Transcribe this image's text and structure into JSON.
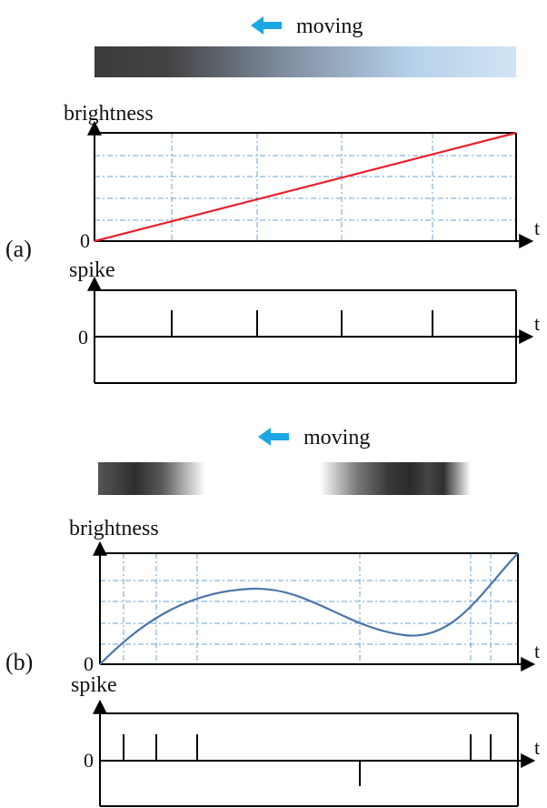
{
  "panel_a": {
    "tag": "(a)",
    "moving_label": "moving",
    "arrow_color": "#1aa7e6",
    "brightness_label": "brightness",
    "spike_label": "spike",
    "origin_label": "0",
    "spike_origin_label": "0",
    "t_label": "t",
    "spike_t_label": "t",
    "curve_color": "#e8202a",
    "gradient": [
      "#3c3c3c",
      "#5a5a5a",
      "#8fa3bb",
      "#b8d3ea",
      "#cfe2f3"
    ]
  },
  "panel_b": {
    "tag": "(b)",
    "moving_label": "moving",
    "arrow_color": "#1aa7e6",
    "brightness_label": "brightness",
    "spike_label": "spike",
    "origin_label": "0",
    "spike_origin_label": "0",
    "t_label": "t",
    "spike_t_label": "t",
    "curve_color": "#4a76a8"
  }
}
